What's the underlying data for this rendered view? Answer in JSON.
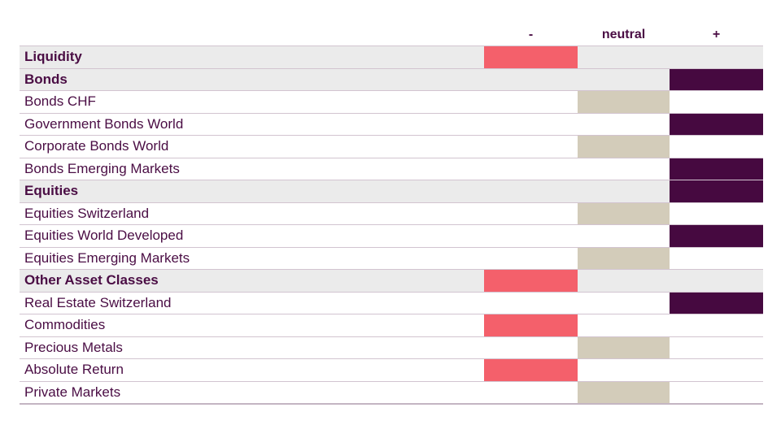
{
  "colors": {
    "text": "#4a0d44",
    "minus": "#f4606b",
    "neutral": "#d3ccba",
    "plus": "#460940",
    "section_bg": "#ebebeb",
    "separator": "#d2c4d0",
    "bottom_border": "#c4b5c2"
  },
  "header": {
    "minus_label": "-",
    "neutral_label": "neutral",
    "plus_label": "+"
  },
  "chart_data": {
    "type": "table",
    "columns": [
      "-",
      "neutral",
      "+"
    ],
    "legend": {
      "minus": "underweight (coral bar in - column)",
      "neutral": "neutral (beige bar in neutral column)",
      "plus": "overweight (dark purple bar in + column)"
    },
    "rows": [
      {
        "label": "Liquidity",
        "section": true,
        "stance": "minus"
      },
      {
        "label": "Bonds",
        "section": true,
        "stance": "plus"
      },
      {
        "label": "Bonds CHF",
        "section": false,
        "stance": "neutral"
      },
      {
        "label": "Government Bonds World",
        "section": false,
        "stance": "plus"
      },
      {
        "label": "Corporate Bonds World",
        "section": false,
        "stance": "neutral"
      },
      {
        "label": "Bonds Emerging Markets",
        "section": false,
        "stance": "plus"
      },
      {
        "label": "Equities",
        "section": true,
        "stance": "plus"
      },
      {
        "label": "Equities Switzerland",
        "section": false,
        "stance": "neutral"
      },
      {
        "label": "Equities World Developed",
        "section": false,
        "stance": "plus"
      },
      {
        "label": "Equities Emerging Markets",
        "section": false,
        "stance": "neutral"
      },
      {
        "label": "Other Asset Classes",
        "section": true,
        "stance": "minus"
      },
      {
        "label": "Real Estate Switzerland",
        "section": false,
        "stance": "plus"
      },
      {
        "label": "Commodities",
        "section": false,
        "stance": "minus"
      },
      {
        "label": "Precious Metals",
        "section": false,
        "stance": "neutral"
      },
      {
        "label": "Absolute Return",
        "section": false,
        "stance": "minus"
      },
      {
        "label": "Private Markets",
        "section": false,
        "stance": "neutral"
      }
    ]
  }
}
